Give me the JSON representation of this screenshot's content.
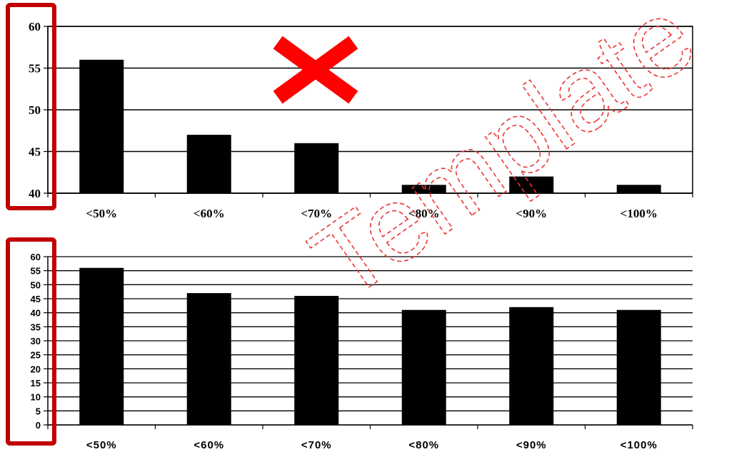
{
  "chart_data": [
    {
      "type": "bar",
      "categories": [
        "<50%",
        "<60%",
        "<70%",
        "<80%",
        "<90%",
        "<100%"
      ],
      "values": [
        56,
        47,
        46,
        41,
        42,
        41
      ],
      "ylim": [
        40,
        60
      ],
      "yticks": [
        "60",
        "55",
        "50",
        "45",
        "40"
      ],
      "grid": true,
      "bar_color": "#000000",
      "annotation": "red cross mark over chart (bad example)",
      "highlight": "y-axis boxed in red"
    },
    {
      "type": "bar",
      "categories": [
        "<50%",
        "<60%",
        "<70%",
        "<80%",
        "<90%",
        "<100%"
      ],
      "values": [
        56,
        47,
        46,
        41,
        42,
        41
      ],
      "ylim": [
        0,
        60
      ],
      "yticks": [
        "60",
        "55",
        "50",
        "45",
        "40",
        "35",
        "30",
        "25",
        "20",
        "15",
        "10",
        "5",
        "0"
      ],
      "grid": true,
      "bar_color": "#000000",
      "highlight": "y-axis boxed in red"
    }
  ],
  "watermark": "Template",
  "colors": {
    "highlight": "#c00000",
    "cross": "#ff0000",
    "watermark": "#e33333"
  }
}
